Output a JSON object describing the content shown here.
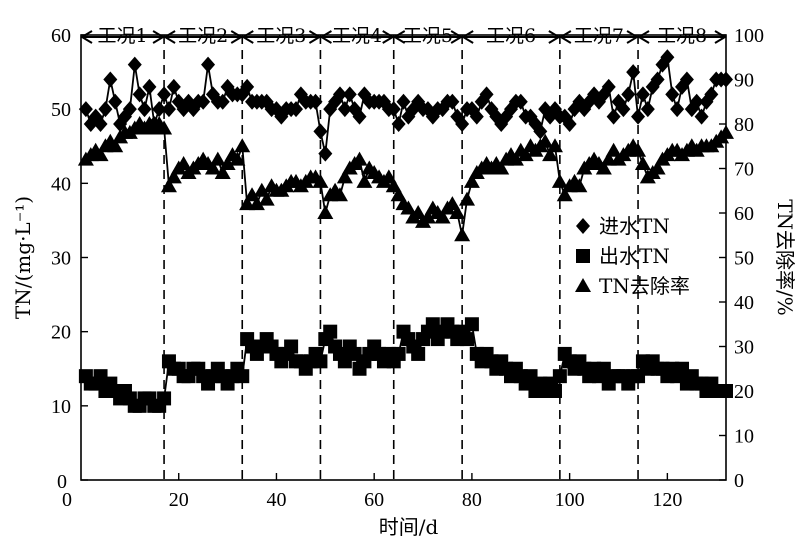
{
  "chart_data": {
    "type": "line",
    "xlabel": "时间/d",
    "ylabel_left": "TN/(mg·L⁻¹)",
    "ylabel_right": "TN去除率/%",
    "xlim": [
      0,
      132
    ],
    "ylim_left": [
      0,
      60
    ],
    "ylim_right": [
      0,
      100
    ],
    "x_ticks": [
      "0",
      "20",
      "40",
      "60",
      "80",
      "100",
      "120"
    ],
    "x_tick_values": [
      0,
      20,
      40,
      60,
      80,
      100,
      120
    ],
    "y_left_ticks": [
      "0",
      "10",
      "20",
      "30",
      "40",
      "50",
      "60"
    ],
    "y_left_tick_values": [
      0,
      10,
      20,
      30,
      40,
      50,
      60
    ],
    "y_right_ticks": [
      "0",
      "10",
      "20",
      "30",
      "40",
      "50",
      "60",
      "70",
      "80",
      "90",
      "100"
    ],
    "y_right_tick_values": [
      0,
      10,
      20,
      30,
      40,
      50,
      60,
      70,
      80,
      90,
      100
    ],
    "phase_boundaries": [
      17,
      33,
      49,
      64,
      78,
      98,
      114
    ],
    "phases": [
      {
        "label": "工况1",
        "start": 0,
        "end": 17
      },
      {
        "label": "工况2",
        "start": 17,
        "end": 33
      },
      {
        "label": "工况3",
        "start": 33,
        "end": 49
      },
      {
        "label": "工况4",
        "start": 49,
        "end": 64
      },
      {
        "label": "工况5",
        "start": 64,
        "end": 78
      },
      {
        "label": "工况6",
        "start": 78,
        "end": 98
      },
      {
        "label": "工况7",
        "start": 98,
        "end": 114
      },
      {
        "label": "工况8",
        "start": 114,
        "end": 132
      }
    ],
    "legend_position": "right-middle",
    "series": [
      {
        "name": "进水TN",
        "marker": "diamond",
        "axis": "left",
        "x": [
          1,
          2,
          3,
          4,
          5,
          6,
          7,
          8,
          9,
          10,
          11,
          12,
          13,
          14,
          15,
          16,
          17,
          18,
          19,
          20,
          21,
          22,
          23,
          24,
          25,
          26,
          27,
          28,
          29,
          30,
          31,
          32,
          33,
          34,
          35,
          36,
          37,
          38,
          39,
          40,
          41,
          42,
          43,
          44,
          45,
          46,
          47,
          48,
          49,
          50,
          51,
          52,
          53,
          54,
          55,
          56,
          57,
          58,
          59,
          60,
          61,
          62,
          63,
          64,
          65,
          66,
          67,
          68,
          69,
          70,
          71,
          72,
          73,
          74,
          75,
          76,
          77,
          78,
          79,
          80,
          81,
          82,
          83,
          84,
          85,
          86,
          87,
          88,
          89,
          90,
          91,
          92,
          93,
          94,
          95,
          96,
          97,
          98,
          99,
          100,
          101,
          102,
          103,
          104,
          105,
          106,
          107,
          108,
          109,
          110,
          111,
          112,
          113,
          114,
          115,
          116,
          117,
          118,
          119,
          120,
          121,
          122,
          123,
          124,
          125,
          126,
          127,
          128,
          129,
          130,
          131,
          132
        ],
        "y": [
          50,
          48,
          49,
          48,
          50,
          54,
          51,
          48,
          49,
          50,
          56,
          52,
          50,
          53,
          48,
          50,
          52,
          50,
          53,
          51,
          50,
          51,
          50,
          51,
          51,
          56,
          52,
          51,
          51,
          53,
          52,
          52,
          52,
          53,
          51,
          51,
          51,
          51,
          50,
          50,
          49,
          50,
          50,
          50,
          52,
          51,
          51,
          51,
          47,
          44,
          50,
          51,
          52,
          50,
          52,
          50,
          49,
          52,
          51,
          51,
          51,
          51,
          50,
          50,
          48,
          51,
          49,
          50,
          51,
          50,
          50,
          49,
          50,
          50,
          51,
          51,
          49,
          48,
          50,
          50,
          49,
          51,
          52,
          50,
          49,
          48,
          49,
          50,
          51,
          51,
          49,
          49,
          48,
          47,
          50,
          49,
          50,
          49,
          49,
          48,
          50,
          51,
          50,
          51,
          52,
          51,
          52,
          53,
          49,
          51,
          50,
          52,
          55,
          49,
          52,
          50,
          53,
          54,
          56,
          57,
          52,
          50,
          53,
          54,
          50,
          51,
          49,
          51,
          52,
          54,
          54,
          54
        ]
      },
      {
        "name": "出水TN",
        "marker": "square",
        "axis": "left",
        "x": [
          1,
          2,
          3,
          4,
          5,
          6,
          7,
          8,
          9,
          10,
          11,
          12,
          13,
          14,
          15,
          16,
          17,
          18,
          19,
          20,
          21,
          22,
          23,
          24,
          25,
          26,
          27,
          28,
          29,
          30,
          31,
          32,
          33,
          34,
          35,
          36,
          37,
          38,
          39,
          40,
          41,
          42,
          43,
          44,
          45,
          46,
          47,
          48,
          49,
          50,
          51,
          52,
          53,
          54,
          55,
          56,
          57,
          58,
          59,
          60,
          61,
          62,
          63,
          64,
          65,
          66,
          67,
          68,
          69,
          70,
          71,
          72,
          73,
          74,
          75,
          76,
          77,
          78,
          79,
          80,
          81,
          82,
          83,
          84,
          85,
          86,
          87,
          88,
          89,
          90,
          91,
          92,
          93,
          94,
          95,
          96,
          97,
          98,
          99,
          100,
          101,
          102,
          103,
          104,
          105,
          106,
          107,
          108,
          109,
          110,
          111,
          112,
          113,
          114,
          115,
          116,
          117,
          118,
          119,
          120,
          121,
          122,
          123,
          124,
          125,
          126,
          127,
          128,
          129,
          130,
          131,
          132
        ],
        "y": [
          14,
          13,
          13,
          14,
          12,
          13,
          12,
          11,
          12,
          11,
          10,
          10,
          11,
          11,
          10,
          10,
          11,
          16,
          15,
          15,
          14,
          14,
          15,
          15,
          14,
          13,
          14,
          15,
          14,
          13,
          14,
          15,
          14,
          19,
          18,
          17,
          18,
          19,
          18,
          17,
          16,
          17,
          18,
          16,
          16,
          15,
          16,
          17,
          16,
          19,
          20,
          18,
          17,
          16,
          18,
          17,
          15,
          16,
          17,
          18,
          17,
          16,
          17,
          16,
          17,
          20,
          19,
          18,
          17,
          19,
          20,
          21,
          19,
          20,
          21,
          20,
          19,
          20,
          19,
          21,
          17,
          16,
          17,
          16,
          15,
          16,
          15,
          14,
          15,
          14,
          13,
          14,
          12,
          13,
          12,
          13,
          12,
          14,
          17,
          16,
          15,
          16,
          15,
          14,
          15,
          14,
          15,
          13,
          14,
          14,
          14,
          13,
          14,
          14,
          16,
          15,
          16,
          15,
          15,
          14,
          15,
          14,
          15,
          13,
          14,
          13,
          13,
          12,
          13,
          12,
          12,
          12
        ]
      },
      {
        "name": "TN去除率",
        "marker": "triangle",
        "axis": "right",
        "x": [
          1,
          2,
          3,
          4,
          5,
          6,
          7,
          8,
          9,
          10,
          11,
          12,
          13,
          14,
          15,
          16,
          17,
          18,
          19,
          20,
          21,
          22,
          23,
          24,
          25,
          26,
          27,
          28,
          29,
          30,
          31,
          32,
          33,
          34,
          35,
          36,
          37,
          38,
          39,
          40,
          41,
          42,
          43,
          44,
          45,
          46,
          47,
          48,
          49,
          50,
          51,
          52,
          53,
          54,
          55,
          56,
          57,
          58,
          59,
          60,
          61,
          62,
          63,
          64,
          65,
          66,
          67,
          68,
          69,
          70,
          71,
          72,
          73,
          74,
          75,
          76,
          77,
          78,
          79,
          80,
          81,
          82,
          83,
          84,
          85,
          86,
          87,
          88,
          89,
          90,
          91,
          92,
          93,
          94,
          95,
          96,
          97,
          98,
          99,
          100,
          101,
          102,
          103,
          104,
          105,
          106,
          107,
          108,
          109,
          110,
          111,
          112,
          113,
          114,
          115,
          116,
          117,
          118,
          119,
          120,
          121,
          122,
          123,
          124,
          125,
          126,
          127,
          128,
          129,
          130,
          131,
          132
        ],
        "y": [
          72,
          73,
          74,
          73,
          75,
          76,
          75,
          77,
          78,
          78,
          79,
          80,
          79,
          80,
          79,
          80,
          79,
          66,
          68,
          70,
          71,
          69,
          70,
          71,
          72,
          71,
          70,
          72,
          69,
          71,
          73,
          72,
          75,
          62,
          64,
          62,
          65,
          63,
          66,
          65,
          65,
          66,
          67,
          67,
          66,
          67,
          68,
          68,
          67,
          60,
          64,
          65,
          64,
          68,
          70,
          71,
          72,
          67,
          70,
          69,
          68,
          67,
          68,
          66,
          64,
          62,
          61,
          59,
          60,
          58,
          59,
          61,
          60,
          59,
          61,
          62,
          60,
          55,
          63,
          67,
          69,
          70,
          71,
          70,
          71,
          70,
          72,
          73,
          72,
          74,
          73,
          75,
          74,
          75,
          76,
          73,
          75,
          67,
          64,
          66,
          67,
          66,
          70,
          71,
          72,
          71,
          70,
          72,
          74,
          72,
          73,
          74,
          75,
          74,
          71,
          68,
          69,
          70,
          72,
          73,
          74,
          74,
          73,
          74,
          75,
          74,
          75,
          75,
          75,
          76,
          77,
          78
        ]
      }
    ]
  }
}
